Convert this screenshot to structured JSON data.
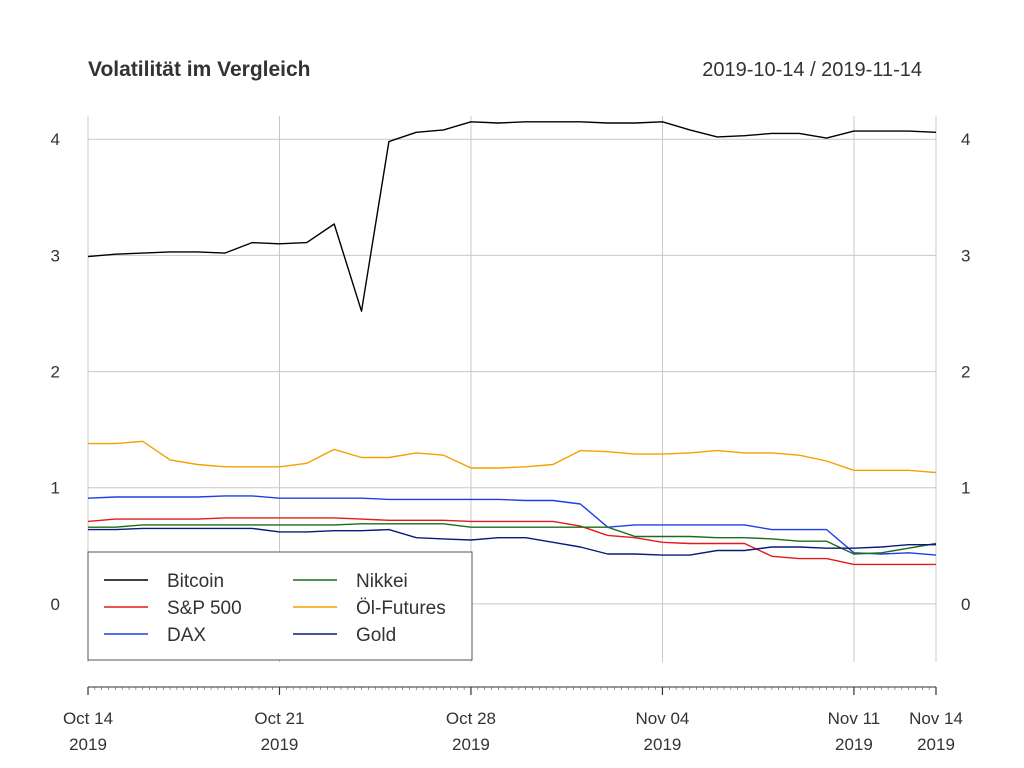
{
  "chart_data": {
    "type": "line",
    "title": "Volatilität im Vergleich",
    "date_range": "2019-10-14 / 2019-11-14",
    "xlabel": "",
    "ylabel": "",
    "ylim": [
      -0.5,
      4.2
    ],
    "y_ticks": [
      "0",
      "1",
      "2",
      "3",
      "4"
    ],
    "x_range": [
      "2019-10-14",
      "2019-11-14"
    ],
    "x_ticks": [
      {
        "date": "2019-10-14",
        "label1": "Oct 14",
        "label2": "2019"
      },
      {
        "date": "2019-10-21",
        "label1": "Oct 21",
        "label2": "2019"
      },
      {
        "date": "2019-10-28",
        "label1": "Oct 28",
        "label2": "2019"
      },
      {
        "date": "2019-11-04",
        "label1": "Nov 04",
        "label2": "2019"
      },
      {
        "date": "2019-11-11",
        "label1": "Nov 11",
        "label2": "2019"
      },
      {
        "date": "2019-11-14",
        "label1": "Nov 14",
        "label2": "2019"
      }
    ],
    "grid": true,
    "legend_position": "bottom-left",
    "dates": [
      "2019-10-14",
      "2019-10-15",
      "2019-10-16",
      "2019-10-17",
      "2019-10-18",
      "2019-10-19",
      "2019-10-20",
      "2019-10-21",
      "2019-10-22",
      "2019-10-23",
      "2019-10-24",
      "2019-10-25",
      "2019-10-26",
      "2019-10-27",
      "2019-10-28",
      "2019-10-29",
      "2019-10-30",
      "2019-10-31",
      "2019-11-01",
      "2019-11-02",
      "2019-11-03",
      "2019-11-04",
      "2019-11-05",
      "2019-11-06",
      "2019-11-07",
      "2019-11-08",
      "2019-11-09",
      "2019-11-10",
      "2019-11-11",
      "2019-11-12",
      "2019-11-13",
      "2019-11-14"
    ],
    "series": [
      {
        "name": "Bitcoin",
        "color": "#000000",
        "values": [
          2.99,
          3.01,
          3.02,
          3.03,
          3.03,
          3.02,
          3.11,
          3.1,
          3.11,
          3.27,
          2.52,
          3.98,
          4.06,
          4.08,
          4.15,
          4.14,
          4.15,
          4.15,
          4.15,
          4.14,
          4.14,
          4.15,
          4.08,
          4.02,
          4.03,
          4.05,
          4.05,
          4.01,
          4.07,
          4.07,
          4.07,
          4.06
        ]
      },
      {
        "name": "S&P 500",
        "color": "#e41a1c",
        "values": [
          0.71,
          0.73,
          0.73,
          0.73,
          0.73,
          0.74,
          0.74,
          0.74,
          0.74,
          0.74,
          0.73,
          0.72,
          0.72,
          0.72,
          0.71,
          0.71,
          0.71,
          0.71,
          0.67,
          0.59,
          0.57,
          0.53,
          0.52,
          0.52,
          0.52,
          0.41,
          0.39,
          0.39,
          0.34,
          0.34,
          0.34,
          0.34
        ]
      },
      {
        "name": "DAX",
        "color": "#1f3ee6",
        "values": [
          0.91,
          0.92,
          0.92,
          0.92,
          0.92,
          0.93,
          0.93,
          0.91,
          0.91,
          0.91,
          0.91,
          0.9,
          0.9,
          0.9,
          0.9,
          0.9,
          0.89,
          0.89,
          0.86,
          0.66,
          0.68,
          0.68,
          0.68,
          0.68,
          0.68,
          0.64,
          0.64,
          0.64,
          0.44,
          0.43,
          0.44,
          0.42
        ]
      },
      {
        "name": "Nikkei",
        "color": "#1a6e1a",
        "values": [
          0.66,
          0.66,
          0.68,
          0.68,
          0.68,
          0.68,
          0.68,
          0.68,
          0.68,
          0.68,
          0.69,
          0.69,
          0.69,
          0.69,
          0.66,
          0.66,
          0.66,
          0.66,
          0.66,
          0.66,
          0.58,
          0.58,
          0.58,
          0.57,
          0.57,
          0.56,
          0.54,
          0.54,
          0.43,
          0.44,
          0.48,
          0.52
        ]
      },
      {
        "name": "Öl-Futures",
        "color": "#f5a000",
        "values": [
          1.38,
          1.38,
          1.4,
          1.24,
          1.2,
          1.18,
          1.18,
          1.18,
          1.21,
          1.33,
          1.26,
          1.26,
          1.3,
          1.28,
          1.17,
          1.17,
          1.18,
          1.2,
          1.32,
          1.31,
          1.29,
          1.29,
          1.3,
          1.32,
          1.3,
          1.3,
          1.28,
          1.23,
          1.15,
          1.15,
          1.15,
          1.13
        ]
      },
      {
        "name": "Gold",
        "color": "#0a1a78",
        "values": [
          0.64,
          0.64,
          0.65,
          0.65,
          0.65,
          0.65,
          0.65,
          0.62,
          0.62,
          0.63,
          0.63,
          0.64,
          0.57,
          0.56,
          0.55,
          0.57,
          0.57,
          0.53,
          0.49,
          0.43,
          0.43,
          0.42,
          0.42,
          0.46,
          0.46,
          0.49,
          0.49,
          0.48,
          0.48,
          0.49,
          0.51,
          0.51
        ]
      }
    ],
    "legend_order": [
      "Bitcoin",
      "S&P 500",
      "DAX",
      "Nikkei",
      "Öl-Futures",
      "Gold"
    ]
  }
}
